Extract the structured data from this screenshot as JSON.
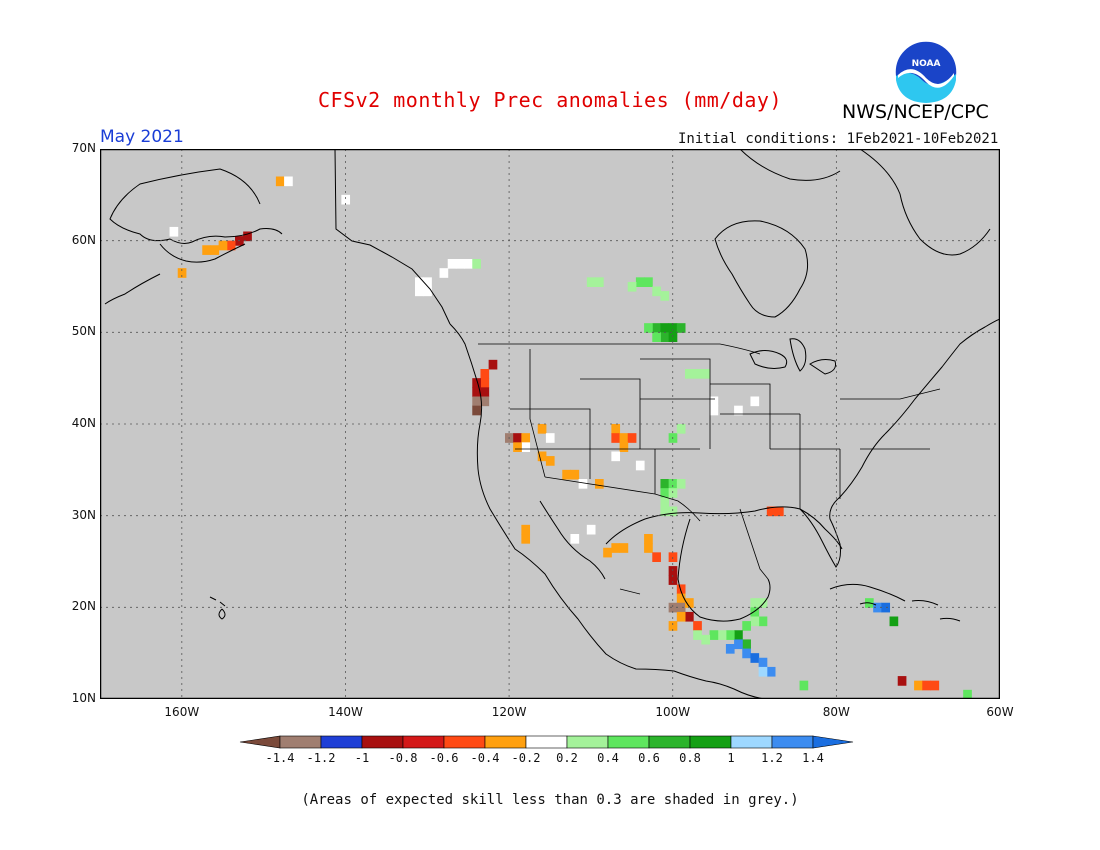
{
  "header": {
    "title": "CFSv2 monthly Prec anomalies (mm/day)",
    "agency": "NWS/NCEP/CPC",
    "logo_text": "NOAA",
    "month": "May 2021",
    "initial_conditions": "Initial conditions: 1Feb2021-10Feb2021"
  },
  "map": {
    "lon_range": [
      -170,
      -60
    ],
    "lat_range": [
      10,
      70
    ],
    "grid": true,
    "background_color": "#c8c8c8",
    "lat_labels": [
      {
        "lat": 70,
        "label": "70N"
      },
      {
        "lat": 60,
        "label": "60N"
      },
      {
        "lat": 50,
        "label": "50N"
      },
      {
        "lat": 40,
        "label": "40N"
      },
      {
        "lat": 30,
        "label": "30N"
      },
      {
        "lat": 20,
        "label": "20N"
      },
      {
        "lat": 10,
        "label": "10N"
      }
    ],
    "lon_labels": [
      {
        "lon": -160,
        "label": "160W"
      },
      {
        "lon": -140,
        "label": "140W"
      },
      {
        "lon": -120,
        "label": "120W"
      },
      {
        "lon": -100,
        "label": "100W"
      },
      {
        "lon": -80,
        "label": "80W"
      },
      {
        "lon": -60,
        "label": "60W"
      }
    ]
  },
  "colorbar": {
    "ticks": [
      "-1.4",
      "-1.2",
      "-1",
      "-0.8",
      "-0.6",
      "-0.4",
      "-0.2",
      "0.2",
      "0.4",
      "0.6",
      "0.8",
      "1",
      "1.2",
      "1.4"
    ],
    "colors": [
      "#7b4a3a",
      "#a07e70",
      "#1f3fd6",
      "#a81010",
      "#d41818",
      "#ff4a14",
      "#ffa010",
      "#ffffff",
      "#a4f29a",
      "#5ee65e",
      "#2cb42c",
      "#14a014",
      "#9ed8ff",
      "#3c8cf0",
      "#1a6ee0"
    ]
  },
  "note": "(Areas of expected skill less than 0.3 are shaded in grey.)",
  "anomaly_cells": [
    {
      "lon": -148,
      "lat": 66.5,
      "v": -0.3
    },
    {
      "lon": -147,
      "lat": 66.5,
      "v": 0
    },
    {
      "lon": -140,
      "lat": 64.5,
      "v": 0
    },
    {
      "lon": -152,
      "lat": 60.5,
      "v": -0.9
    },
    {
      "lon": -153,
      "lat": 60,
      "v": -0.9
    },
    {
      "lon": -154,
      "lat": 59.5,
      "v": -0.6
    },
    {
      "lon": -155,
      "lat": 59.5,
      "v": -0.3
    },
    {
      "lon": -156,
      "lat": 59,
      "v": -0.3
    },
    {
      "lon": -157,
      "lat": 59,
      "v": -0.3
    },
    {
      "lon": -160,
      "lat": 56.5,
      "v": -0.3
    },
    {
      "lon": -161,
      "lat": 61,
      "v": 0
    },
    {
      "lon": -122,
      "lat": 46.5,
      "v": -0.9
    },
    {
      "lon": -123,
      "lat": 45.5,
      "v": -0.6
    },
    {
      "lon": -123,
      "lat": 44.5,
      "v": -0.6
    },
    {
      "lon": -124,
      "lat": 44.5,
      "v": -0.9
    },
    {
      "lon": -123,
      "lat": 43.5,
      "v": -0.9
    },
    {
      "lon": -124,
      "lat": 43.5,
      "v": -0.9
    },
    {
      "lon": -124,
      "lat": 42.5,
      "v": -1.3
    },
    {
      "lon": -123,
      "lat": 42.5,
      "v": -1.3
    },
    {
      "lon": -124,
      "lat": 41.5,
      "v": -1.5
    },
    {
      "lon": -120,
      "lat": 38.5,
      "v": -1.3
    },
    {
      "lon": -119,
      "lat": 38.5,
      "v": -0.9
    },
    {
      "lon": -118,
      "lat": 38.5,
      "v": -0.3
    },
    {
      "lon": -118,
      "lat": 37.5,
      "v": 0
    },
    {
      "lon": -119,
      "lat": 37.5,
      "v": -0.3
    },
    {
      "lon": -116,
      "lat": 39.5,
      "v": -0.3
    },
    {
      "lon": -115,
      "lat": 38.5,
      "v": 0
    },
    {
      "lon": -116,
      "lat": 36.5,
      "v": -0.3
    },
    {
      "lon": -115,
      "lat": 36,
      "v": -0.3
    },
    {
      "lon": -113,
      "lat": 34.5,
      "v": -0.3
    },
    {
      "lon": -112,
      "lat": 34.5,
      "v": -0.3
    },
    {
      "lon": -111,
      "lat": 33.5,
      "v": 0
    },
    {
      "lon": -109,
      "lat": 33.5,
      "v": -0.3
    },
    {
      "lon": -107,
      "lat": 39.5,
      "v": -0.3
    },
    {
      "lon": -107,
      "lat": 38.5,
      "v": -0.6
    },
    {
      "lon": -106,
      "lat": 38.5,
      "v": -0.3
    },
    {
      "lon": -105,
      "lat": 38.5,
      "v": -0.6
    },
    {
      "lon": -106,
      "lat": 37.5,
      "v": -0.3
    },
    {
      "lon": -107,
      "lat": 36.5,
      "v": 0
    },
    {
      "lon": -104,
      "lat": 35.5,
      "v": 0
    },
    {
      "lon": -118,
      "lat": 28.5,
      "v": -0.3
    },
    {
      "lon": -118,
      "lat": 27.5,
      "v": -0.3
    },
    {
      "lon": -112,
      "lat": 27.5,
      "v": 0
    },
    {
      "lon": -110,
      "lat": 28.5,
      "v": 0
    },
    {
      "lon": -107,
      "lat": 26.5,
      "v": -0.3
    },
    {
      "lon": -106,
      "lat": 26.5,
      "v": -0.3
    },
    {
      "lon": -108,
      "lat": 26,
      "v": -0.3
    },
    {
      "lon": -103,
      "lat": 27.5,
      "v": -0.3
    },
    {
      "lon": -103,
      "lat": 26.5,
      "v": -0.3
    },
    {
      "lon": -102,
      "lat": 25.5,
      "v": -0.6
    },
    {
      "lon": -100,
      "lat": 25.5,
      "v": -0.6
    },
    {
      "lon": -100,
      "lat": 24,
      "v": -0.9
    },
    {
      "lon": -100,
      "lat": 23,
      "v": -0.9
    },
    {
      "lon": -99,
      "lat": 22,
      "v": -0.6
    },
    {
      "lon": -99,
      "lat": 21,
      "v": -0.3
    },
    {
      "lon": -99,
      "lat": 20,
      "v": -1.3
    },
    {
      "lon": -100,
      "lat": 20,
      "v": -1.3
    },
    {
      "lon": -98,
      "lat": 19,
      "v": -0.9
    },
    {
      "lon": -99,
      "lat": 19,
      "v": -0.3
    },
    {
      "lon": -97,
      "lat": 18,
      "v": -0.6
    },
    {
      "lon": -100,
      "lat": 18,
      "v": -0.3
    },
    {
      "lon": -98,
      "lat": 20.5,
      "v": -0.3
    },
    {
      "lon": -88,
      "lat": 30.5,
      "v": -0.6
    },
    {
      "lon": -87,
      "lat": 30.5,
      "v": -0.6
    },
    {
      "lon": -72,
      "lat": 12,
      "v": -0.9
    },
    {
      "lon": -70,
      "lat": 11.5,
      "v": -0.3
    },
    {
      "lon": -69,
      "lat": 11.5,
      "v": -0.6
    },
    {
      "lon": -68,
      "lat": 11.5,
      "v": -0.6
    },
    {
      "lon": -131,
      "lat": 55.5,
      "v": 0
    },
    {
      "lon": -130,
      "lat": 55.5,
      "v": 0
    },
    {
      "lon": -130,
      "lat": 54.5,
      "v": 0
    },
    {
      "lon": -131,
      "lat": 54.5,
      "v": 0
    },
    {
      "lon": -128,
      "lat": 56.5,
      "v": 0
    },
    {
      "lon": -127,
      "lat": 57.5,
      "v": 0
    },
    {
      "lon": -126,
      "lat": 57.5,
      "v": 0
    },
    {
      "lon": -125,
      "lat": 57.5,
      "v": 0
    },
    {
      "lon": -124,
      "lat": 57.5,
      "v": 0.3
    },
    {
      "lon": -110,
      "lat": 55.5,
      "v": 0.3
    },
    {
      "lon": -109,
      "lat": 55.5,
      "v": 0.3
    },
    {
      "lon": -104,
      "lat": 55.5,
      "v": 0.5
    },
    {
      "lon": -103,
      "lat": 55.5,
      "v": 0.5
    },
    {
      "lon": -105,
      "lat": 55,
      "v": 0.3
    },
    {
      "lon": -102,
      "lat": 54.5,
      "v": 0.3
    },
    {
      "lon": -101,
      "lat": 54,
      "v": 0.3
    },
    {
      "lon": -102,
      "lat": 50.5,
      "v": 0.7
    },
    {
      "lon": -101,
      "lat": 50.5,
      "v": 0.9
    },
    {
      "lon": -100,
      "lat": 50.5,
      "v": 0.9
    },
    {
      "lon": -99,
      "lat": 50.5,
      "v": 0.7
    },
    {
      "lon": -101,
      "lat": 49.5,
      "v": 0.7
    },
    {
      "lon": -100,
      "lat": 49.5,
      "v": 0.9
    },
    {
      "lon": -102,
      "lat": 49.5,
      "v": 0.5
    },
    {
      "lon": -103,
      "lat": 50.5,
      "v": 0.5
    },
    {
      "lon": -98,
      "lat": 45.5,
      "v": 0.3
    },
    {
      "lon": -97,
      "lat": 45.5,
      "v": 0.3
    },
    {
      "lon": -96,
      "lat": 45.5,
      "v": 0.3
    },
    {
      "lon": -100,
      "lat": 38.5,
      "v": 0.5
    },
    {
      "lon": -99,
      "lat": 39.5,
      "v": 0.3
    },
    {
      "lon": -101,
      "lat": 33.5,
      "v": 0.7
    },
    {
      "lon": -100,
      "lat": 33.5,
      "v": 0.5
    },
    {
      "lon": -101,
      "lat": 32.5,
      "v": 0.5
    },
    {
      "lon": -100,
      "lat": 32.5,
      "v": 0.3
    },
    {
      "lon": -99,
      "lat": 33.5,
      "v": 0.3
    },
    {
      "lon": -101,
      "lat": 31.5,
      "v": 0.3
    },
    {
      "lon": -100,
      "lat": 30.5,
      "v": 0.3
    },
    {
      "lon": -101,
      "lat": 30.5,
      "v": 0.3
    },
    {
      "lon": -90,
      "lat": 20.5,
      "v": 0.3
    },
    {
      "lon": -89,
      "lat": 20.5,
      "v": 0.3
    },
    {
      "lon": -90,
      "lat": 19.5,
      "v": 0.5
    },
    {
      "lon": -89,
      "lat": 18.5,
      "v": 0.5
    },
    {
      "lon": -90,
      "lat": 18.5,
      "v": 0.3
    },
    {
      "lon": -91,
      "lat": 18,
      "v": 0.5
    },
    {
      "lon": -92,
      "lat": 17,
      "v": 0.9
    },
    {
      "lon": -93,
      "lat": 17,
      "v": 0.5
    },
    {
      "lon": -94,
      "lat": 17,
      "v": 0.3
    },
    {
      "lon": -95,
      "lat": 17,
      "v": 0.5
    },
    {
      "lon": -91,
      "lat": 16,
      "v": 0.7
    },
    {
      "lon": -92,
      "lat": 16,
      "v": 1.3
    },
    {
      "lon": -93,
      "lat": 15.5,
      "v": 1.3
    },
    {
      "lon": -91,
      "lat": 15,
      "v": 1.3
    },
    {
      "lon": -90,
      "lat": 14.5,
      "v": 1.5
    },
    {
      "lon": -89,
      "lat": 14,
      "v": 1.3
    },
    {
      "lon": -88,
      "lat": 13,
      "v": 1.3
    },
    {
      "lon": -89,
      "lat": 13,
      "v": 1.1
    },
    {
      "lon": -97,
      "lat": 17,
      "v": 0.3
    },
    {
      "lon": -96,
      "lat": 16.5,
      "v": 0.3
    },
    {
      "lon": -84,
      "lat": 11.5,
      "v": 0.5
    },
    {
      "lon": -76,
      "lat": 20.5,
      "v": 0.5
    },
    {
      "lon": -75,
      "lat": 20,
      "v": 1.3
    },
    {
      "lon": -74,
      "lat": 20,
      "v": 1.5
    },
    {
      "lon": -73,
      "lat": 18.5,
      "v": 0.9
    },
    {
      "lon": -64,
      "lat": 10.5,
      "v": 0.5
    },
    {
      "lon": -90,
      "lat": 42.5,
      "v": 0
    },
    {
      "lon": -95,
      "lat": 42.5,
      "v": 0
    },
    {
      "lon": -95,
      "lat": 41.5,
      "v": 0
    },
    {
      "lon": -92,
      "lat": 41.5,
      "v": 0
    }
  ]
}
